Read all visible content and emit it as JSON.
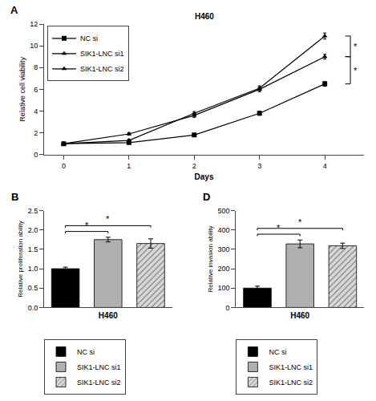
{
  "chart_data": [
    {
      "type": "line",
      "title": "H460",
      "xlabel": "Days",
      "ylabel": "Relative cell viability",
      "x": [
        0,
        1,
        2,
        3,
        4
      ],
      "xlim": [
        -0.3,
        4.6
      ],
      "xticks": [
        0,
        1,
        2,
        3,
        4
      ],
      "ylim": [
        0,
        12
      ],
      "yticks": [
        0,
        2,
        4,
        6,
        8,
        10,
        12
      ],
      "grid": false,
      "legend": "upper left",
      "series": [
        {
          "name": "NC si",
          "color": "#000000",
          "marker": "square",
          "values": [
            1.0,
            1.1,
            1.8,
            3.8,
            6.5
          ],
          "errors": [
            0.05,
            0.1,
            0.12,
            0.18,
            0.22
          ]
        },
        {
          "name": "SIK1-LNC si1",
          "color": "#000000",
          "marker": "triangle",
          "values": [
            1.0,
            1.3,
            3.8,
            6.1,
            10.9
          ],
          "errors": [
            0.05,
            0.1,
            0.15,
            0.22,
            0.28
          ]
        },
        {
          "name": "SIK1-LNC si2",
          "color": "#000000",
          "marker": "triangle",
          "values": [
            1.0,
            1.9,
            3.6,
            6.0,
            9.0
          ],
          "errors": [
            0.05,
            0.12,
            0.18,
            0.22,
            0.22
          ]
        }
      ],
      "annotations": [
        {
          "text": "A"
        },
        {
          "text": "*",
          "between": [
            "NC si",
            "SIK1-LNC si2"
          ]
        },
        {
          "text": "*",
          "between": [
            "SIK1-LNC si2",
            "SIK1-LNC si1"
          ]
        }
      ]
    },
    {
      "type": "bar",
      "xlabel": "H460",
      "ylabel": "Relative proliferation ability",
      "ylim": [
        0,
        2.5
      ],
      "yticks": [
        {
          "value": 0,
          "label": "0.0"
        },
        0.5,
        {
          "value": 1,
          "label": "1.0"
        },
        1.5,
        {
          "value": 2,
          "label": "2.0"
        },
        2.5
      ],
      "tick_labels": "y",
      "grid": false,
      "legend": "below",
      "series": [
        {
          "name": "NC si",
          "color": "#000000",
          "values": [
            1.0
          ],
          "errors": [
            0.04
          ]
        },
        {
          "name": "SIK1-LNC si1",
          "color": "#b0b0b0",
          "values": [
            1.75
          ],
          "errors": [
            0.06
          ]
        },
        {
          "name": "SIK1-LNC si2",
          "color": "#d8d8d8",
          "marker": "hatch",
          "values": [
            1.65
          ],
          "errors": [
            0.12
          ]
        }
      ],
      "annotations": [
        {
          "text": "B"
        },
        {
          "text": "*",
          "between": [
            "NC si",
            "SIK1-LNC si1"
          ]
        },
        {
          "text": "*",
          "between": [
            "NC si",
            "SIK1-LNC si2"
          ]
        }
      ]
    },
    {
      "type": "bar",
      "xlabel": "H460",
      "ylabel": "Relative invasion ability",
      "ylim": [
        0,
        500
      ],
      "yticks": [
        0,
        100,
        200,
        300,
        400,
        500
      ],
      "tick_labels": "y",
      "grid": false,
      "legend": "below",
      "series": [
        {
          "name": "NC si",
          "color": "#000000",
          "values": [
            100
          ],
          "errors": [
            10
          ]
        },
        {
          "name": "SIK1-LNC si1",
          "color": "#b0b0b0",
          "values": [
            328
          ],
          "errors": [
            20
          ]
        },
        {
          "name": "SIK1-LNC si2",
          "color": "#d8d8d8",
          "marker": "hatch",
          "values": [
            318
          ],
          "errors": [
            14
          ]
        }
      ],
      "annotations": [
        {
          "text": "D"
        },
        {
          "text": "*",
          "between": [
            "NC si",
            "SIK1-LNC si1"
          ]
        },
        {
          "text": "*",
          "between": [
            "NC si",
            "SIK1-LNC si2"
          ]
        }
      ]
    }
  ]
}
